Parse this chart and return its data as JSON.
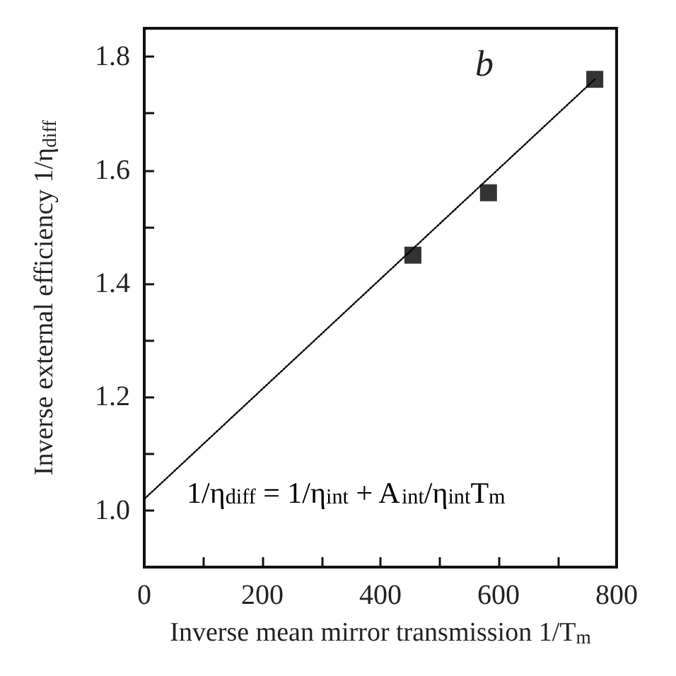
{
  "chart_data": {
    "type": "scatter",
    "xlabel": "Inverse mean mirror transmission 1/T$_{m}$",
    "ylabel": "Inverse external efficiency 1/η$_{diff}$",
    "annotations": [
      "b",
      "1/η$_{diff}$ = 1/η$_{int}$ + A$_{int}$/η$_{int}$T$_{m}$"
    ],
    "series": [
      {
        "color": "#000000",
        "marker": "square",
        "x": [
          455,
          583,
          763
        ],
        "values": [
          1.45,
          1.56,
          1.76
        ]
      },
      {
        "type": "line",
        "color": "#000000",
        "line_style": "dotted",
        "marker": "none",
        "x": [
          0,
          763
        ],
        "values": [
          1.02,
          1.76
        ]
      }
    ],
    "xlim": [
      0,
      800
    ],
    "xticks": [
      0,
      {
        "value": 100,
        "label": null
      },
      200,
      {
        "value": 300,
        "label": null
      },
      400,
      {
        "value": 500,
        "label": null
      },
      600,
      {
        "value": 700,
        "label": null
      },
      800
    ],
    "ylim": [
      0.9,
      1.85
    ],
    "yticks": [
      {
        "value": 0.9,
        "label": null
      },
      {
        "value": 1,
        "label": "1.0"
      },
      {
        "value": 1.1,
        "label": null
      },
      1.2,
      {
        "value": 1.3,
        "label": null
      },
      1.4,
      {
        "value": 1.5,
        "label": null
      },
      1.6,
      {
        "value": 1.7,
        "label": null
      },
      1.8
    ],
    "grid": false
  }
}
